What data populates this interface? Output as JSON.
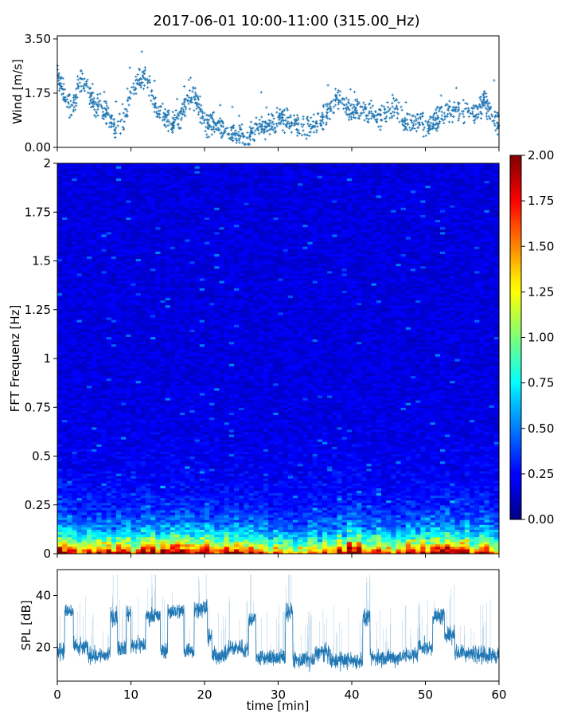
{
  "title": "2017-06-01 10:00-11:00 (315.00_Hz)",
  "colors": {
    "series": "#1f77b4",
    "frame": "#000000"
  },
  "chart_data": [
    {
      "type": "scatter",
      "title": "",
      "xlabel": "",
      "ylabel": "Wind [m/s]",
      "xlim": [
        0,
        60
      ],
      "ylim": [
        0,
        3.6
      ],
      "yticks": [
        0.0,
        1.75,
        3.5
      ],
      "ytick_labels": [
        "0.00",
        "1.75",
        "3.50"
      ],
      "xtick_labels": [],
      "grid": false,
      "envelope": {
        "x": [
          0,
          1,
          2,
          3,
          4,
          5,
          6,
          7,
          8,
          9,
          10,
          11,
          12,
          13,
          14,
          15,
          16,
          17,
          18,
          19,
          20,
          21,
          22,
          23,
          24,
          25,
          26,
          27,
          28,
          29,
          30,
          31,
          32,
          33,
          34,
          35,
          36,
          37,
          38,
          39,
          40,
          41,
          42,
          43,
          44,
          45,
          46,
          47,
          48,
          49,
          50,
          51,
          52,
          53,
          54,
          55,
          56,
          57,
          58,
          59,
          60
        ],
        "y": [
          2.4,
          1.7,
          1.1,
          2.1,
          1.9,
          1.4,
          1.3,
          1.0,
          0.6,
          0.9,
          1.7,
          2.2,
          2.2,
          1.6,
          1.1,
          0.9,
          0.8,
          1.1,
          1.6,
          1.5,
          0.8,
          0.7,
          0.7,
          0.6,
          0.4,
          0.35,
          0.3,
          0.6,
          0.7,
          0.7,
          0.9,
          0.9,
          0.8,
          0.7,
          0.6,
          0.7,
          0.9,
          1.3,
          1.6,
          1.3,
          1.1,
          1.2,
          1.2,
          1.1,
          1.0,
          1.2,
          1.2,
          0.9,
          0.8,
          0.8,
          0.7,
          0.8,
          1.0,
          1.1,
          1.2,
          1.2,
          1.2,
          1.1,
          1.5,
          1.0,
          0.7
        ],
        "spread": 0.45
      }
    },
    {
      "type": "heatmap",
      "title": "",
      "xlabel": "",
      "ylabel": "FFT Frequenz [Hz]",
      "xlim": [
        0,
        60
      ],
      "ylim": [
        0,
        2
      ],
      "yticks": [
        0,
        0.25,
        0.5,
        0.75,
        1,
        1.25,
        1.5,
        1.75,
        2
      ],
      "ytick_labels": [
        "0",
        "0.25",
        "0.5",
        "0.75",
        "1",
        "1.25",
        "1.5",
        "1.75",
        "2"
      ],
      "xtick_labels": [],
      "colormap": "jet",
      "colorbar": {
        "min": 0,
        "max": 2,
        "ticks": [
          0.0,
          0.25,
          0.5,
          0.75,
          1.0,
          1.25,
          1.5,
          1.75,
          2.0
        ],
        "tick_labels": [
          "0.00",
          "0.25",
          "0.50",
          "0.75",
          "1.00",
          "1.25",
          "1.50",
          "1.75",
          "2.00"
        ]
      },
      "low_freq_intensity": {
        "x": [
          0,
          5,
          10,
          15,
          20,
          25,
          30,
          35,
          40,
          45,
          50,
          55,
          60
        ],
        "value": [
          1.6,
          1.5,
          1.4,
          1.7,
          1.6,
          1.5,
          1.1,
          1.2,
          1.7,
          1.3,
          1.7,
          1.6,
          1.4
        ]
      },
      "background_intensity": 0.17
    },
    {
      "type": "line",
      "title": "",
      "xlabel": "time [min]",
      "ylabel": "SPL [dB]",
      "xlim": [
        0,
        60
      ],
      "ylim": [
        7,
        50
      ],
      "yticks": [
        20,
        40
      ],
      "ytick_labels": [
        "20",
        "40"
      ],
      "xticks": [
        0,
        10,
        20,
        30,
        40,
        50,
        60
      ],
      "xtick_labels": [
        "0",
        "10",
        "20",
        "30",
        "40",
        "50",
        "60"
      ],
      "grid": false,
      "segments": [
        {
          "x0": 0.0,
          "x1": 1.0,
          "level": 19
        },
        {
          "x0": 1.0,
          "x1": 2.2,
          "level": 34
        },
        {
          "x0": 2.2,
          "x1": 4.2,
          "level": 20
        },
        {
          "x0": 4.2,
          "x1": 7.2,
          "level": 17
        },
        {
          "x0": 7.2,
          "x1": 8.2,
          "level": 32
        },
        {
          "x0": 8.2,
          "x1": 9.4,
          "level": 20
        },
        {
          "x0": 9.4,
          "x1": 10.0,
          "level": 33
        },
        {
          "x0": 10.0,
          "x1": 12.0,
          "level": 21
        },
        {
          "x0": 12.0,
          "x1": 14.0,
          "level": 32
        },
        {
          "x0": 14.0,
          "x1": 15.0,
          "level": 19
        },
        {
          "x0": 15.0,
          "x1": 17.2,
          "level": 34
        },
        {
          "x0": 17.2,
          "x1": 18.6,
          "level": 19
        },
        {
          "x0": 18.6,
          "x1": 20.4,
          "level": 35
        },
        {
          "x0": 20.4,
          "x1": 21.0,
          "level": 24
        },
        {
          "x0": 21.0,
          "x1": 23.2,
          "level": 17
        },
        {
          "x0": 23.2,
          "x1": 25.2,
          "level": 20
        },
        {
          "x0": 25.2,
          "x1": 26.0,
          "level": 19
        },
        {
          "x0": 26.0,
          "x1": 27.0,
          "level": 31
        },
        {
          "x0": 27.0,
          "x1": 31.0,
          "level": 16
        },
        {
          "x0": 31.0,
          "x1": 32.0,
          "level": 34
        },
        {
          "x0": 32.0,
          "x1": 35.0,
          "level": 15
        },
        {
          "x0": 35.0,
          "x1": 37.0,
          "level": 18
        },
        {
          "x0": 37.0,
          "x1": 41.5,
          "level": 15
        },
        {
          "x0": 41.5,
          "x1": 42.5,
          "level": 31
        },
        {
          "x0": 42.5,
          "x1": 46.5,
          "level": 16
        },
        {
          "x0": 46.5,
          "x1": 49.0,
          "level": 17
        },
        {
          "x0": 49.0,
          "x1": 51.0,
          "level": 20
        },
        {
          "x0": 51.0,
          "x1": 52.6,
          "level": 32
        },
        {
          "x0": 52.6,
          "x1": 54.0,
          "level": 25
        },
        {
          "x0": 54.0,
          "x1": 57.0,
          "level": 18
        },
        {
          "x0": 57.0,
          "x1": 60.0,
          "level": 17
        }
      ]
    }
  ]
}
